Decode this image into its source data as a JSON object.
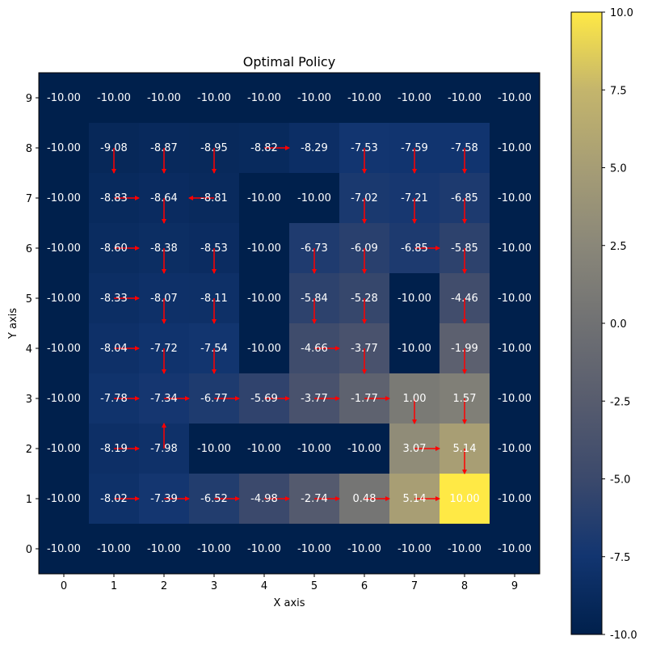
{
  "chart_data": {
    "type": "heatmap",
    "title": "Optimal Policy",
    "xlabel": "X axis",
    "ylabel": "Y axis",
    "x_ticks": [
      "0",
      "1",
      "2",
      "3",
      "4",
      "5",
      "6",
      "7",
      "8",
      "9"
    ],
    "y_ticks": [
      "0",
      "1",
      "2",
      "3",
      "4",
      "5",
      "6",
      "7",
      "8",
      "9"
    ],
    "xlim": [
      -0.5,
      9.5
    ],
    "ylim": [
      -0.5,
      9.5
    ],
    "grid": false,
    "colormap": "cividis",
    "color_range": [
      -10,
      10
    ],
    "colorbar_ticks": [
      "-10.0",
      "-7.5",
      "-5.0",
      "-2.5",
      "0.0",
      "2.5",
      "5.0",
      "7.5",
      "10.0"
    ],
    "colorbar_tick_values": [
      -10,
      -7.5,
      -5,
      -2.5,
      0,
      2.5,
      5,
      7.5,
      10
    ],
    "arrow_color": "#ff0000",
    "value_label_color": "#ffffff",
    "values_by_row_y9_to_y0": [
      [
        "-10.00",
        "-10.00",
        "-10.00",
        "-10.00",
        "-10.00",
        "-10.00",
        "-10.00",
        "-10.00",
        "-10.00",
        "-10.00"
      ],
      [
        "-10.00",
        "-9.08",
        "-8.87",
        "-8.95",
        "-8.82",
        "-8.29",
        "-7.53",
        "-7.59",
        "-7.58",
        "-10.00"
      ],
      [
        "-10.00",
        "-8.83",
        "-8.64",
        "-8.81",
        "-10.00",
        "-10.00",
        "-7.02",
        "-7.21",
        "-6.85",
        "-10.00"
      ],
      [
        "-10.00",
        "-8.60",
        "-8.38",
        "-8.53",
        "-10.00",
        "-6.73",
        "-6.09",
        "-6.85",
        "-5.85",
        "-10.00"
      ],
      [
        "-10.00",
        "-8.33",
        "-8.07",
        "-8.11",
        "-10.00",
        "-5.84",
        "-5.28",
        "-10.00",
        "-4.46",
        "-10.00"
      ],
      [
        "-10.00",
        "-8.04",
        "-7.72",
        "-7.54",
        "-10.00",
        "-4.66",
        "-3.77",
        "-10.00",
        "-1.99",
        "-10.00"
      ],
      [
        "-10.00",
        "-7.78",
        "-7.34",
        "-6.77",
        "-5.69",
        "-3.77",
        "-1.77",
        "1.00",
        "1.57",
        "-10.00"
      ],
      [
        "-10.00",
        "-8.19",
        "-7.98",
        "-10.00",
        "-10.00",
        "-10.00",
        "-10.00",
        "3.07",
        "5.14",
        "-10.00"
      ],
      [
        "-10.00",
        "-8.02",
        "-7.39",
        "-6.52",
        "-4.98",
        "-2.74",
        "0.48",
        "5.14",
        "10.00",
        "-10.00"
      ],
      [
        "-10.00",
        "-10.00",
        "-10.00",
        "-10.00",
        "-10.00",
        "-10.00",
        "-10.00",
        "-10.00",
        "-10.00",
        "-10.00"
      ]
    ],
    "policy_arrows_by_row_y9_to_y0": [
      [
        "",
        "",
        "",
        "",
        "",
        "",
        "",
        "",
        "",
        ""
      ],
      [
        "",
        "down",
        "down",
        "down",
        "right",
        "",
        "down",
        "down",
        "down",
        ""
      ],
      [
        "",
        "right",
        "down",
        "left",
        "",
        "",
        "down",
        "down",
        "down",
        ""
      ],
      [
        "",
        "right",
        "down",
        "down",
        "",
        "down",
        "down",
        "right",
        "down",
        ""
      ],
      [
        "",
        "right",
        "down",
        "down",
        "",
        "down",
        "down",
        "",
        "down",
        ""
      ],
      [
        "",
        "right",
        "down",
        "down",
        "",
        "right",
        "down",
        "",
        "down",
        ""
      ],
      [
        "",
        "right",
        "right",
        "right",
        "right",
        "right",
        "right",
        "down",
        "down",
        ""
      ],
      [
        "",
        "right",
        "up",
        "",
        "",
        "",
        "",
        "right",
        "down",
        ""
      ],
      [
        "",
        "right",
        "right",
        "right",
        "right",
        "right",
        "right",
        "right",
        "",
        ""
      ],
      [
        "",
        "",
        "",
        "",
        "",
        "",
        "",
        "",
        "",
        ""
      ]
    ]
  }
}
